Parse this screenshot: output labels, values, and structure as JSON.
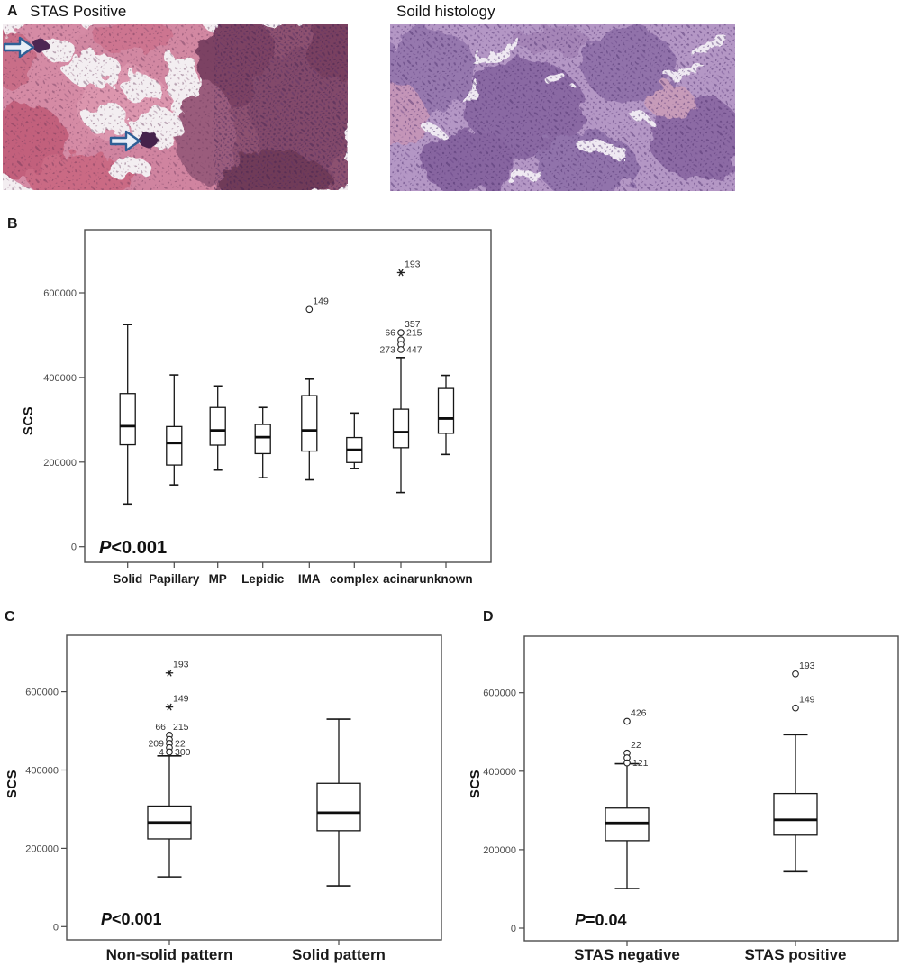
{
  "figure": {
    "panel_a": {
      "label": "A",
      "left_title": "STAS Positive",
      "right_title": "Soild histology"
    },
    "panel_b": {
      "label": "B"
    },
    "panel_c": {
      "label": "C"
    },
    "panel_d": {
      "label": "D"
    }
  },
  "chart_data": [
    {
      "id": "b",
      "type": "boxplot",
      "ylabel": "SCS",
      "p_label": "P<0.001",
      "ylim": [
        0,
        740000
      ],
      "yticks": [
        0,
        200000,
        400000,
        600000
      ],
      "grid": false,
      "categories": [
        "Solid",
        "Papillary",
        "MP",
        "Lepidic",
        "IMA",
        "complex",
        "acinar",
        "unknown"
      ],
      "boxes": [
        {
          "low": 101000,
          "q1": 241000,
          "median": 285000,
          "q3": 362000,
          "high": 525000
        },
        {
          "low": 146000,
          "q1": 193000,
          "median": 245000,
          "q3": 284000,
          "high": 406000
        },
        {
          "low": 181000,
          "q1": 240000,
          "median": 275000,
          "q3": 329000,
          "high": 380000
        },
        {
          "low": 163000,
          "q1": 220000,
          "median": 259000,
          "q3": 289000,
          "high": 329000
        },
        {
          "low": 158000,
          "q1": 226000,
          "median": 275000,
          "q3": 357000,
          "high": 396000
        },
        {
          "low": 185000,
          "q1": 199000,
          "median": 229000,
          "q3": 258000,
          "high": 316000
        },
        {
          "low": 128000,
          "q1": 234000,
          "median": 271000,
          "q3": 325000,
          "high": 447000
        },
        {
          "low": 218000,
          "q1": 268000,
          "median": 303000,
          "q3": 374000,
          "high": 405000
        }
      ],
      "outliers": [
        {
          "category": 4,
          "value": 561000,
          "marker": "circle",
          "labels": [
            {
              "text": "149",
              "side": "above-right"
            }
          ]
        },
        {
          "category": 6,
          "value": 648000,
          "marker": "star",
          "labels": [
            {
              "text": "193",
              "side": "above-right"
            }
          ]
        },
        {
          "category": 6,
          "value": 506000,
          "marker": "circle",
          "labels": [
            {
              "text": "66",
              "side": "left"
            },
            {
              "text": "357",
              "side": "above-right"
            },
            {
              "text": "215",
              "side": "right"
            }
          ]
        },
        {
          "category": 6,
          "value": 489000,
          "marker": "circle",
          "labels": []
        },
        {
          "category": 6,
          "value": 478000,
          "marker": "circle",
          "labels": []
        },
        {
          "category": 6,
          "value": 466000,
          "marker": "circle",
          "labels": [
            {
              "text": "273",
              "side": "left"
            },
            {
              "text": "447",
              "side": "right"
            }
          ]
        }
      ]
    },
    {
      "id": "c",
      "type": "boxplot",
      "ylabel": "SCS",
      "p_label": "P<0.001",
      "ylim": [
        0,
        740000
      ],
      "yticks": [
        0,
        200000,
        400000,
        600000
      ],
      "grid": false,
      "categories": [
        "Non-solid pattern",
        "Solid pattern"
      ],
      "boxes": [
        {
          "low": 127000,
          "q1": 224000,
          "median": 266000,
          "q3": 308000,
          "high": 436000
        },
        {
          "low": 104000,
          "q1": 245000,
          "median": 291000,
          "q3": 366000,
          "high": 530000
        }
      ],
      "outliers": [
        {
          "category": 0,
          "value": 648000,
          "marker": "star",
          "labels": [
            {
              "text": "193",
              "side": "above-right"
            }
          ]
        },
        {
          "category": 0,
          "value": 561000,
          "marker": "star",
          "labels": [
            {
              "text": "149",
              "side": "above-right"
            }
          ]
        },
        {
          "category": 0,
          "value": 489000,
          "marker": "circle",
          "labels": [
            {
              "text": "66",
              "side": "above-left"
            },
            {
              "text": "215",
              "side": "above-right"
            }
          ]
        },
        {
          "category": 0,
          "value": 478000,
          "marker": "circle",
          "labels": []
        },
        {
          "category": 0,
          "value": 468000,
          "marker": "circle",
          "labels": [
            {
              "text": "209",
              "side": "left"
            },
            {
              "text": "22",
              "side": "right"
            }
          ]
        },
        {
          "category": 0,
          "value": 457000,
          "marker": "circle",
          "labels": []
        },
        {
          "category": 0,
          "value": 446000,
          "marker": "circle",
          "labels": [
            {
              "text": "4",
              "side": "left"
            },
            {
              "text": "300",
              "side": "right"
            }
          ]
        }
      ]
    },
    {
      "id": "d",
      "type": "boxplot",
      "ylabel": "SCS",
      "p_label": "P=0.04",
      "ylim": [
        0,
        740000
      ],
      "yticks": [
        0,
        200000,
        400000,
        600000
      ],
      "grid": false,
      "categories": [
        "STAS negative",
        "STAS positive"
      ],
      "boxes": [
        {
          "low": 101000,
          "q1": 223000,
          "median": 268000,
          "q3": 306000,
          "high": 419000
        },
        {
          "low": 144000,
          "q1": 237000,
          "median": 276000,
          "q3": 343000,
          "high": 493000
        }
      ],
      "outliers": [
        {
          "category": 0,
          "value": 527000,
          "marker": "circle",
          "labels": [
            {
              "text": "426",
              "side": "above-right"
            }
          ]
        },
        {
          "category": 0,
          "value": 446000,
          "marker": "circle",
          "labels": [
            {
              "text": "22",
              "side": "above-right"
            }
          ]
        },
        {
          "category": 0,
          "value": 434000,
          "marker": "circle",
          "labels": []
        },
        {
          "category": 0,
          "value": 421000,
          "marker": "circle",
          "labels": [
            {
              "text": "121",
              "side": "right"
            }
          ]
        },
        {
          "category": 1,
          "value": 648000,
          "marker": "circle",
          "labels": [
            {
              "text": "193",
              "side": "above-right"
            }
          ]
        },
        {
          "category": 1,
          "value": 561000,
          "marker": "circle",
          "labels": [
            {
              "text": "149",
              "side": "above-right"
            }
          ]
        }
      ]
    }
  ]
}
